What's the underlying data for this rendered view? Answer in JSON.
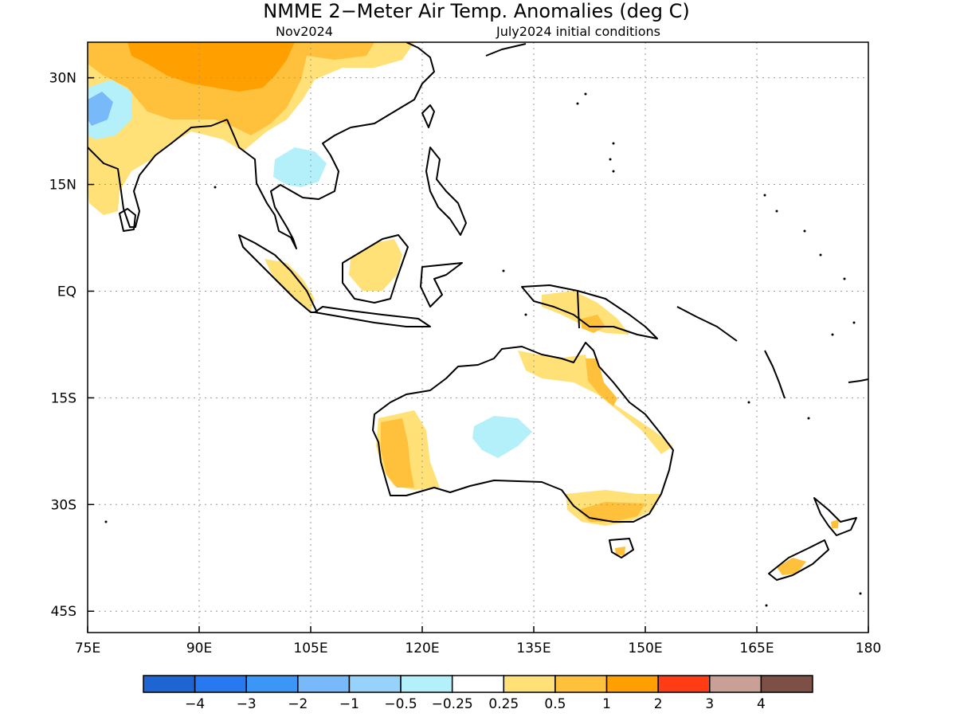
{
  "title": "NMME 2−Meter Air Temp. Anomalies (deg C)",
  "subtitle_left": "Nov2024",
  "subtitle_right": "July2024 initial conditions",
  "map": {
    "lon_range": [
      75,
      180
    ],
    "lat_range": [
      -48,
      35
    ],
    "x_ticks": [
      {
        "lon": 75,
        "label": "75E"
      },
      {
        "lon": 90,
        "label": "90E"
      },
      {
        "lon": 105,
        "label": "105E"
      },
      {
        "lon": 120,
        "label": "120E"
      },
      {
        "lon": 135,
        "label": "135E"
      },
      {
        "lon": 150,
        "label": "150E"
      },
      {
        "lon": 165,
        "label": "165E"
      },
      {
        "lon": 180,
        "label": "180"
      }
    ],
    "y_ticks": [
      {
        "lat": 30,
        "label": "30N"
      },
      {
        "lat": 15,
        "label": "15N"
      },
      {
        "lat": 0,
        "label": "EQ"
      },
      {
        "lat": -15,
        "label": "15S"
      },
      {
        "lat": -30,
        "label": "30S"
      },
      {
        "lat": -45,
        "label": "45S"
      }
    ],
    "grid": true
  },
  "colorbar": {
    "colors": [
      "#1e64d2",
      "#2878f0",
      "#3c96f5",
      "#78b9fa",
      "#96d2fa",
      "#b4f0fa",
      "#ffffff",
      "#ffe178",
      "#ffc03c",
      "#ffa000",
      "#ff3c14",
      "#c8a096",
      "#7d5046"
    ],
    "labels": [
      "−4",
      "−3",
      "−2",
      "−1",
      "−0.5",
      "−0.25",
      "0.25",
      "0.5",
      "1",
      "2",
      "3",
      "4"
    ]
  }
}
